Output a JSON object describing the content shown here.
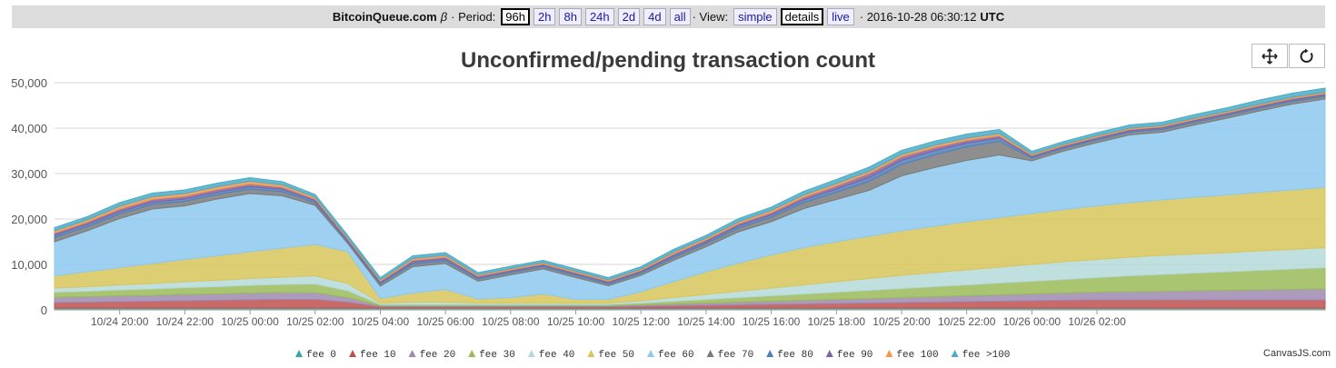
{
  "header": {
    "brand": "BitcoinQueue.com",
    "beta": "β",
    "period_label": "· Period:",
    "periods": [
      "96h",
      "2h",
      "8h",
      "24h",
      "2d",
      "4d",
      "all"
    ],
    "selected_period": "96h",
    "view_label": "· View:",
    "views": [
      "simple",
      "details"
    ],
    "selected_view": "details",
    "live": "live",
    "timestamp": "· 2016-10-28 06:30:12",
    "tz": "UTC"
  },
  "toolbar": {
    "pan_icon": "move-icon",
    "reset_icon": "reset-icon"
  },
  "credit": "CanvasJS.com",
  "chart_data": {
    "type": "area",
    "stacked": true,
    "title": "Unconfirmed/pending transaction count",
    "ylim": [
      0,
      50000
    ],
    "yticks": [
      0,
      10000,
      20000,
      30000,
      40000,
      50000
    ],
    "ytick_labels": [
      "0",
      "10,000",
      "20,000",
      "30,000",
      "40,000",
      "50,000"
    ],
    "xticks": [
      "10/24 20:00",
      "10/24 22:00",
      "10/25 00:00",
      "10/25 02:00",
      "10/25 04:00",
      "10/25 06:00",
      "10/25 08:00",
      "10/25 10:00",
      "10/25 12:00",
      "10/25 14:00",
      "10/25 16:00",
      "10/25 18:00",
      "10/25 20:00",
      "10/25 22:00",
      "10/26 00:00",
      "10/26 02:00"
    ],
    "x_hours": [
      0,
      1,
      2,
      3,
      4,
      5,
      6,
      7,
      8,
      9,
      10,
      11,
      12,
      13,
      14,
      15,
      16,
      17,
      18,
      19,
      20,
      21,
      22,
      23,
      24,
      25,
      26,
      27,
      28,
      29,
      30,
      31,
      32,
      33,
      34,
      35,
      36,
      37,
      38,
      39
    ],
    "x_start": "10/24 18:00",
    "legend_position": "bottom",
    "grid": true,
    "series": [
      {
        "name": "fee 0",
        "color": "#3aa5a5",
        "values": [
          400,
          400,
          400,
          400,
          400,
          400,
          400,
          400,
          400,
          400,
          400,
          400,
          400,
          400,
          400,
          400,
          400,
          400,
          400,
          400,
          400,
          400,
          400,
          400,
          400,
          400,
          400,
          400,
          400,
          400,
          400,
          400,
          400,
          400,
          400,
          400,
          400,
          400,
          400,
          400
        ]
      },
      {
        "name": "fee 10",
        "color": "#c0504d",
        "values": [
          1200,
          1300,
          1400,
          1500,
          1600,
          1700,
          1800,
          1900,
          1900,
          1300,
          300,
          300,
          300,
          300,
          300,
          300,
          300,
          300,
          400,
          500,
          600,
          700,
          800,
          900,
          1000,
          1100,
          1200,
          1300,
          1400,
          1500,
          1600,
          1700,
          1800,
          1800,
          1800,
          1800,
          1800,
          1800,
          1800,
          1800
        ]
      },
      {
        "name": "fee 20",
        "color": "#9d8ab0",
        "values": [
          1200,
          1200,
          1300,
          1300,
          1400,
          1400,
          1500,
          1500,
          1500,
          1000,
          200,
          200,
          200,
          200,
          200,
          200,
          200,
          200,
          300,
          400,
          500,
          600,
          700,
          800,
          900,
          1000,
          1100,
          1200,
          1300,
          1400,
          1500,
          1600,
          1700,
          1800,
          1900,
          2000,
          2100,
          2200,
          2300,
          2400
        ]
      },
      {
        "name": "fee 30",
        "color": "#9bbb59",
        "values": [
          1100,
          1200,
          1300,
          1400,
          1500,
          1600,
          1700,
          1800,
          1900,
          1500,
          300,
          300,
          300,
          300,
          300,
          300,
          300,
          300,
          400,
          600,
          800,
          1000,
          1200,
          1400,
          1600,
          1800,
          2000,
          2200,
          2400,
          2600,
          2800,
          3000,
          3200,
          3500,
          3700,
          3900,
          4100,
          4300,
          4500,
          4700
        ]
      },
      {
        "name": "fee 40",
        "color": "#b5d9d9",
        "values": [
          900,
          1000,
          1100,
          1200,
          1300,
          1400,
          1500,
          1600,
          1800,
          1600,
          300,
          500,
          500,
          300,
          300,
          300,
          300,
          300,
          500,
          800,
          1100,
          1400,
          1700,
          2000,
          2300,
          2600,
          2900,
          3100,
          3300,
          3500,
          3700,
          3900,
          4000,
          4100,
          4200,
          4200,
          4200,
          4300,
          4300,
          4400
        ]
      },
      {
        "name": "fee 50",
        "color": "#d8c65a",
        "values": [
          2700,
          3300,
          3800,
          4400,
          4900,
          5400,
          5900,
          6400,
          6900,
          7000,
          1000,
          2000,
          2800,
          900,
          1200,
          2000,
          800,
          800,
          2000,
          3500,
          5000,
          6200,
          7300,
          8200,
          8800,
          9300,
          9800,
          10200,
          10600,
          10900,
          11200,
          11500,
          11800,
          12000,
          12200,
          12500,
          12700,
          12900,
          13100,
          13300
        ]
      },
      {
        "name": "fee 60",
        "color": "#8dc9ee",
        "values": [
          7500,
          9000,
          10800,
          12000,
          11800,
          12500,
          12800,
          11500,
          8600,
          1800,
          2700,
          5800,
          5700,
          3900,
          5000,
          5500,
          4800,
          3000,
          3600,
          4700,
          5500,
          6900,
          7300,
          8600,
          9300,
          10100,
          12100,
          12900,
          13500,
          13800,
          11600,
          12900,
          13900,
          14900,
          14900,
          15900,
          16900,
          17900,
          18900,
          19400
        ]
      },
      {
        "name": "fee 70",
        "color": "#7a7a7a",
        "values": [
          900,
          900,
          1000,
          1000,
          1000,
          1000,
          1000,
          900,
          600,
          400,
          500,
          600,
          600,
          500,
          500,
          500,
          500,
          400,
          500,
          600,
          700,
          800,
          1000,
          1300,
          1600,
          2000,
          2500,
          2800,
          3000,
          3000,
          600,
          600,
          600,
          600,
          600,
          600,
          600,
          600,
          600,
          600
        ]
      },
      {
        "name": "fee 80",
        "color": "#4f81bd",
        "values": [
          500,
          500,
          500,
          500,
          500,
          500,
          500,
          500,
          400,
          300,
          300,
          400,
          400,
          300,
          300,
          300,
          300,
          300,
          300,
          400,
          400,
          500,
          500,
          600,
          700,
          800,
          900,
          900,
          800,
          700,
          300,
          300,
          300,
          300,
          300,
          300,
          300,
          300,
          300,
          300
        ]
      },
      {
        "name": "fee 90",
        "color": "#8064a2",
        "values": [
          500,
          500,
          600,
          600,
          600,
          600,
          600,
          500,
          400,
          300,
          300,
          400,
          400,
          300,
          300,
          300,
          300,
          300,
          300,
          400,
          400,
          500,
          500,
          600,
          700,
          900,
          800,
          700,
          600,
          500,
          300,
          300,
          300,
          300,
          300,
          300,
          300,
          300,
          300,
          300
        ]
      },
      {
        "name": "fee 100",
        "color": "#f79646",
        "values": [
          500,
          500,
          600,
          600,
          600,
          600,
          600,
          500,
          400,
          300,
          300,
          400,
          400,
          300,
          300,
          300,
          300,
          300,
          300,
          400,
          400,
          400,
          500,
          500,
          500,
          500,
          500,
          500,
          500,
          500,
          300,
          300,
          300,
          300,
          300,
          300,
          300,
          300,
          300,
          300
        ]
      },
      {
        "name": "fee >100",
        "color": "#4bacc6",
        "values": [
          700,
          700,
          800,
          800,
          800,
          800,
          800,
          700,
          600,
          500,
          500,
          600,
          600,
          500,
          500,
          500,
          500,
          500,
          500,
          600,
          600,
          700,
          700,
          800,
          900,
          900,
          900,
          900,
          900,
          900,
          600,
          600,
          700,
          700,
          700,
          800,
          800,
          900,
          900,
          900
        ]
      }
    ]
  }
}
